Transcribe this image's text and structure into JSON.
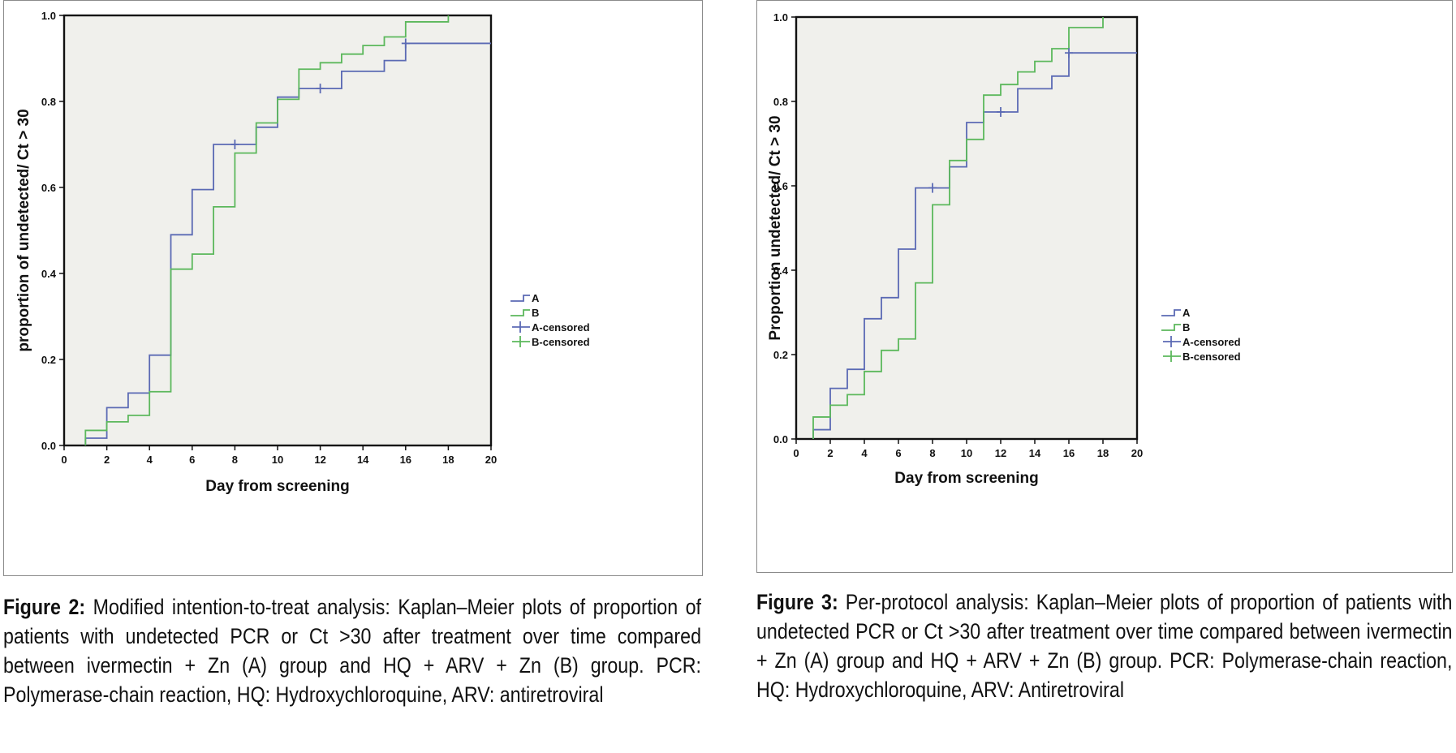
{
  "colors": {
    "series_a": "#5b6ab4",
    "series_b": "#5cb85c",
    "plot_bg": "#f0f0ec",
    "frame": "#111111"
  },
  "figures": [
    {
      "caption_label": "Figure 2:",
      "caption_text": "Modified intention-to-treat analysis: Kaplan–Meier plots of proportion of patients with undetected PCR or Ct >30 after treatment over time compared between ivermectin + Zn (A) group and HQ + ARV + Zn (B) group. PCR: Polymerase-chain reaction, HQ: Hydroxychloroquine, ARV: antiretroviral"
    },
    {
      "caption_label": "Figure 3:",
      "caption_text": "Per-protocol analysis: Kaplan–Meier plots of proportion of patients with undetected PCR or Ct >30 after treatment over time compared between ivermectin + Zn (A) group and HQ + ARV + Zn (B) group. PCR: Polymerase-chain reaction, HQ: Hydroxychloroquine, ARV: Antiretroviral"
    }
  ],
  "chart_data": [
    {
      "type": "line",
      "subtype": "kaplan-meier step",
      "xlabel": "Day from screening",
      "ylabel": "proportion of undetected/ Ct > 30",
      "xlim": [
        0,
        20
      ],
      "ylim": [
        0,
        1.0
      ],
      "x_ticks": [
        "0",
        "2",
        "4",
        "6",
        "8",
        "10",
        "12",
        "14",
        "16",
        "18",
        "20"
      ],
      "y_ticks": [
        "0.0",
        "0.2",
        "0.4",
        "0.6",
        "0.8",
        "1.0"
      ],
      "legend_position": "right",
      "legend": [
        "A",
        "B",
        "A-censored",
        "B-censored"
      ],
      "series": [
        {
          "name": "A",
          "x": [
            1,
            2,
            3,
            4,
            5,
            6,
            7,
            9,
            10,
            11,
            13,
            15,
            16,
            20
          ],
          "y": [
            0.017,
            0.088,
            0.122,
            0.21,
            0.49,
            0.595,
            0.7,
            0.74,
            0.81,
            0.83,
            0.87,
            0.895,
            0.935,
            0.935
          ]
        },
        {
          "name": "B",
          "x": [
            1,
            2,
            3,
            4,
            5,
            6,
            7,
            8,
            9,
            10,
            11,
            12,
            13,
            14,
            15,
            16,
            18
          ],
          "y": [
            0.035,
            0.055,
            0.07,
            0.125,
            0.41,
            0.445,
            0.555,
            0.68,
            0.75,
            0.805,
            0.875,
            0.89,
            0.91,
            0.93,
            0.95,
            0.985,
            1.0
          ]
        }
      ],
      "censored": [
        {
          "name": "A-censored",
          "x": [
            8,
            12,
            16
          ],
          "y": [
            0.7,
            0.83,
            0.935
          ]
        }
      ]
    },
    {
      "type": "line",
      "subtype": "kaplan-meier step",
      "xlabel": "Day from screening",
      "ylabel": "Proportion undetected/ Ct > 30",
      "xlim": [
        0,
        20
      ],
      "ylim": [
        0,
        1.0
      ],
      "x_ticks": [
        "0",
        "2",
        "4",
        "6",
        "8",
        "10",
        "12",
        "14",
        "16",
        "18",
        "20"
      ],
      "y_ticks": [
        "0.0",
        "0.2",
        "0.4",
        "0.6",
        "0.8",
        "1.0"
      ],
      "legend_position": "right",
      "legend": [
        "A",
        "B",
        "A-censored",
        "B-censored"
      ],
      "series": [
        {
          "name": "A",
          "x": [
            1,
            2,
            3,
            4,
            5,
            6,
            7,
            9,
            10,
            11,
            13,
            15,
            16,
            20
          ],
          "y": [
            0.022,
            0.12,
            0.165,
            0.285,
            0.335,
            0.45,
            0.595,
            0.645,
            0.75,
            0.775,
            0.83,
            0.86,
            0.915,
            0.915
          ]
        },
        {
          "name": "B",
          "x": [
            1,
            2,
            3,
            4,
            5,
            6,
            7,
            8,
            9,
            10,
            11,
            12,
            13,
            14,
            15,
            16,
            18
          ],
          "y": [
            0.052,
            0.08,
            0.105,
            0.16,
            0.21,
            0.237,
            0.37,
            0.555,
            0.66,
            0.71,
            0.815,
            0.84,
            0.87,
            0.895,
            0.925,
            0.975,
            1.0
          ]
        }
      ],
      "censored": [
        {
          "name": "A-censored",
          "x": [
            8,
            12,
            16
          ],
          "y": [
            0.595,
            0.775,
            0.915
          ]
        }
      ]
    }
  ]
}
